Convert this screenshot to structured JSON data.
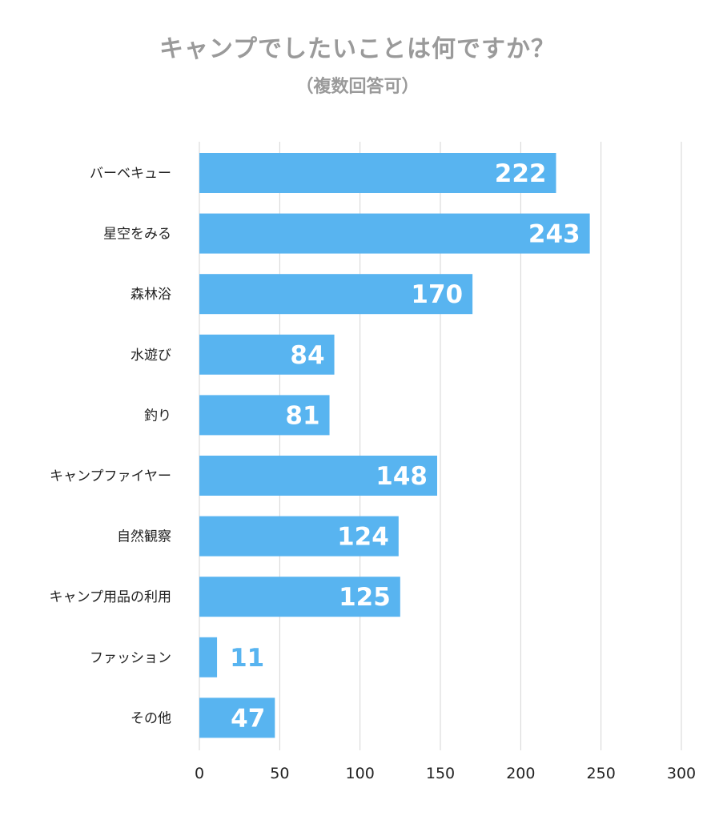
{
  "chart_data": {
    "type": "bar",
    "orientation": "horizontal",
    "title": "キャンプでしたいことは何ですか？",
    "subtitle": "（複数回答可）",
    "categories": [
      "バーベキュー",
      "星空をみる",
      "森林浴",
      "水遊び",
      "釣り",
      "キャンプファイヤー",
      "自然観察",
      "キャンプ用品の利用",
      "ファッション",
      "その他"
    ],
    "values": [
      222,
      243,
      170,
      84,
      81,
      148,
      124,
      125,
      11,
      47
    ],
    "xlim": [
      0,
      300
    ],
    "xticks": [
      0,
      50,
      100,
      150,
      200,
      250,
      300
    ],
    "grid": true,
    "bar_color": "#58b4f0",
    "grid_color": "#d4d4d4",
    "label_inside_color": "#ffffff",
    "label_outside_color": "#58b4f0"
  }
}
